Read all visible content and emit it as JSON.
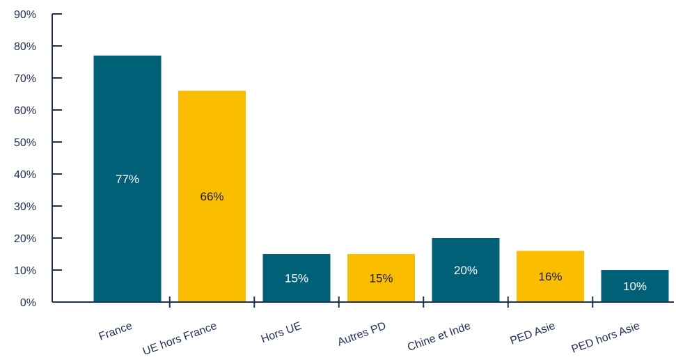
{
  "chart_data": {
    "type": "bar",
    "categories": [
      "France",
      "UE hors France",
      "Hors UE",
      "Autres PD",
      "Chine et Inde",
      "PED Asie",
      "PED hors Asie"
    ],
    "values": [
      77,
      66,
      15,
      15,
      20,
      16,
      10
    ],
    "data_labels": [
      "77%",
      "66%",
      "15%",
      "15%",
      "20%",
      "16%",
      "10%"
    ],
    "bar_colors": [
      "#006078",
      "#fbbd00",
      "#006078",
      "#fbbd00",
      "#006078",
      "#fbbd00",
      "#006078"
    ],
    "label_colors": [
      "#ffffff",
      "#1a1a1a",
      "#ffffff",
      "#1a1a1a",
      "#ffffff",
      "#1a1a1a",
      "#ffffff"
    ],
    "y_ticks": [
      "0%",
      "10%",
      "20%",
      "30%",
      "40%",
      "50%",
      "60%",
      "70%",
      "80%",
      "90%"
    ],
    "ylim": [
      0,
      90
    ],
    "axis_color": "#1f2f5c",
    "grid": false,
    "legend": "none",
    "title": "",
    "xlabel": "",
    "ylabel": ""
  }
}
